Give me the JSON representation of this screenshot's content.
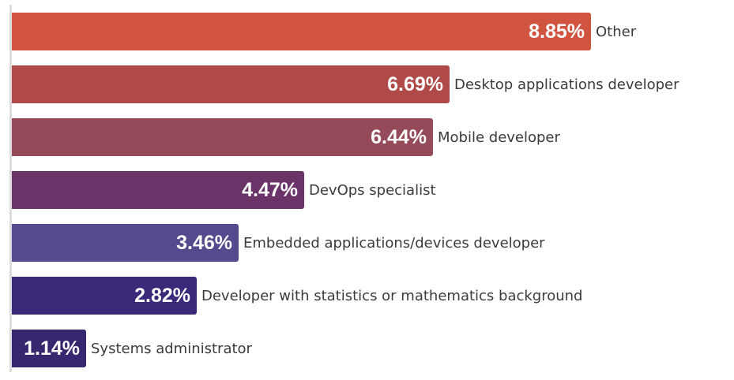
{
  "chart_data": {
    "type": "bar",
    "orientation": "horizontal",
    "unit": "%",
    "xlim": [
      0,
      8.85
    ],
    "grid": false,
    "legend": "none",
    "categories": [
      "Other",
      "Desktop applications developer",
      "Mobile developer",
      "DevOps specialist",
      "Embedded applications/devices developer",
      "Developer with statistics or mathematics background",
      "Systems administrator"
    ],
    "values": [
      8.85,
      6.69,
      6.44,
      4.47,
      3.46,
      2.82,
      1.14
    ],
    "value_labels": [
      "8.85%",
      "6.69%",
      "6.44%",
      "4.47%",
      "3.46%",
      "2.82%",
      "1.14%"
    ],
    "colors": [
      "#d05440",
      "#af4a48",
      "#944a58",
      "#6a3468",
      "#554a8e",
      "#3a2878",
      "#38276f"
    ]
  }
}
